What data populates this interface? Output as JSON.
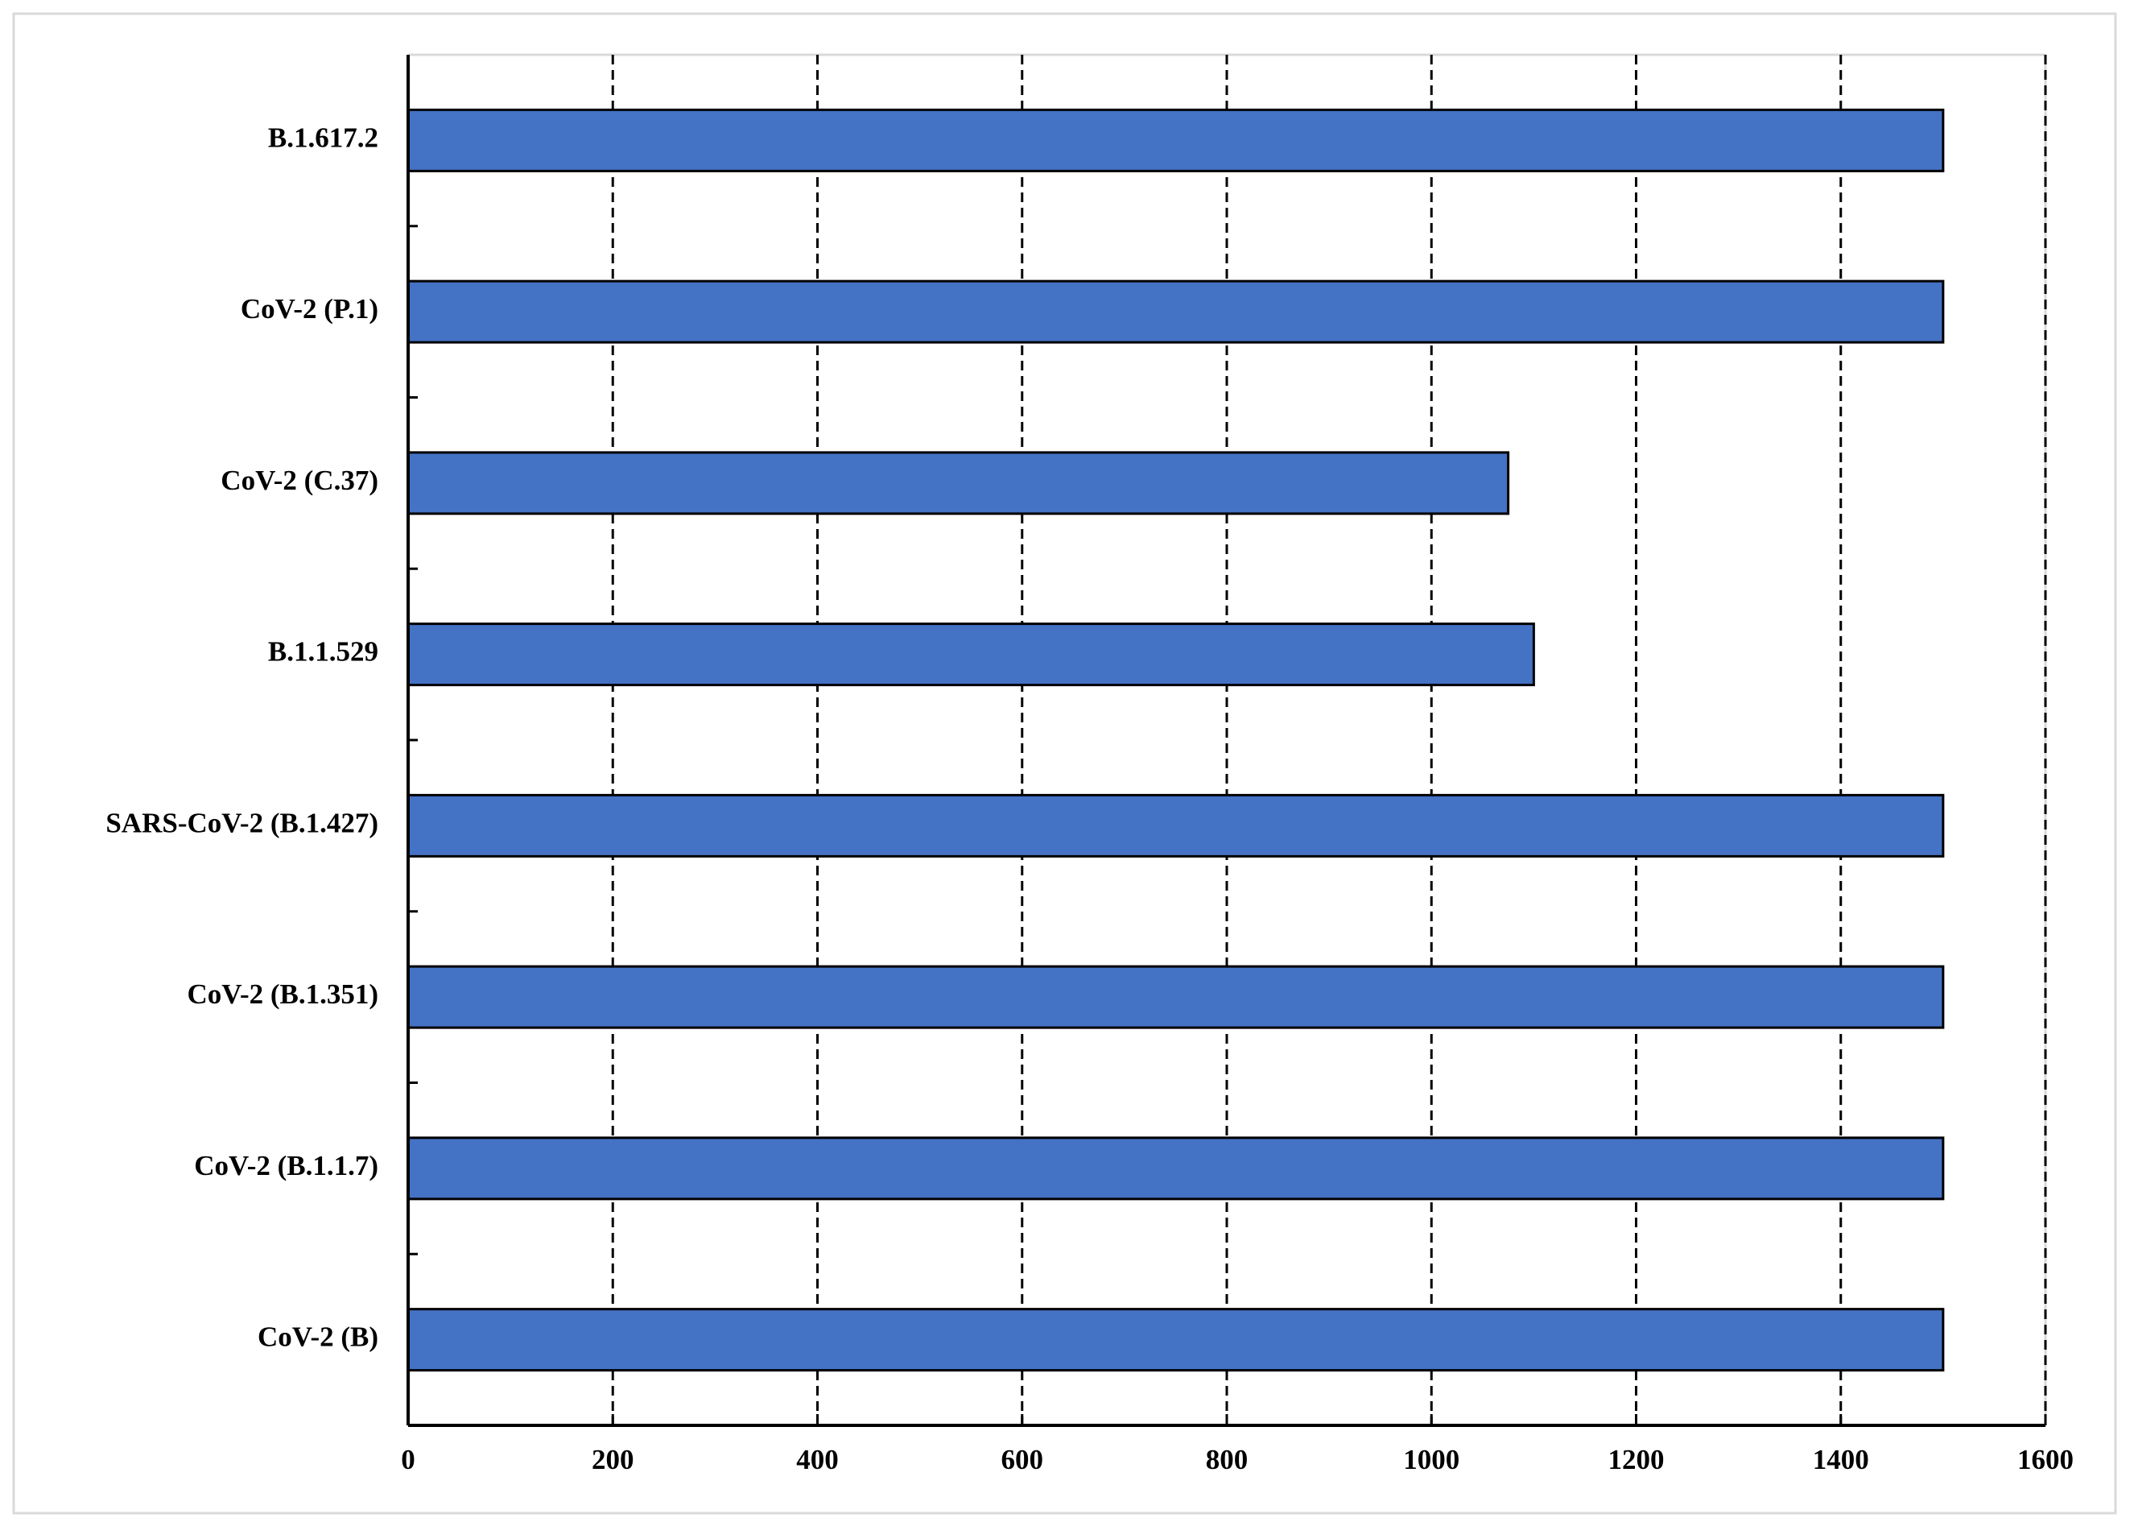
{
  "chart_data": {
    "type": "barh",
    "categories": [
      "B.1.617.2",
      "CoV-2 (P.1)",
      "CoV-2 (C.37)",
      "B.1.1.529",
      "SARS-CoV-2 (B.1.427)",
      "CoV-2 (B.1.351)",
      "CoV-2 (B.1.1.7)",
      "CoV-2 (B)"
    ],
    "values": [
      1500,
      1500,
      1075,
      1100,
      1500,
      1500,
      1500,
      1500
    ],
    "color": "#4472c4",
    "xlim": [
      0,
      1600
    ],
    "xticks": [
      0,
      200,
      400,
      600,
      800,
      1000,
      1200,
      1400,
      1600
    ],
    "grid": true
  }
}
